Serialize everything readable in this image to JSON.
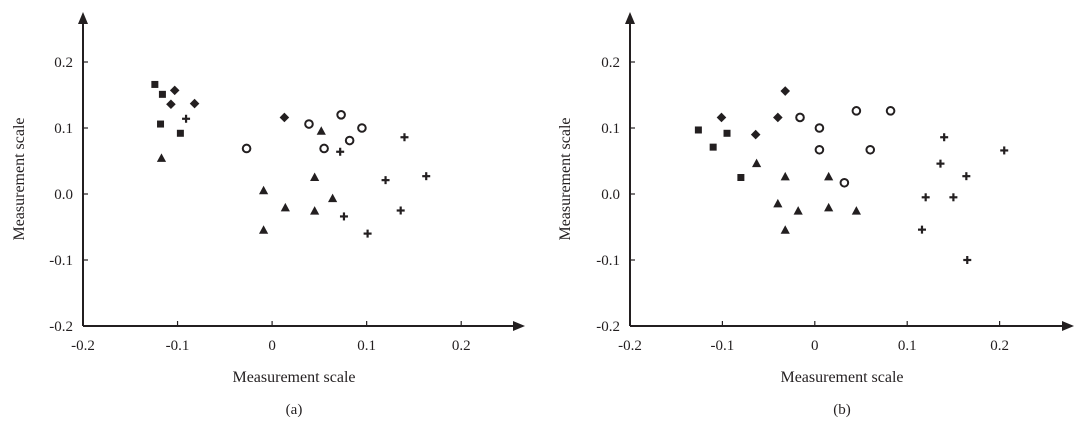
{
  "chart_data": [
    {
      "type": "scatter",
      "panel_label": "(a)",
      "xlabel": "Measurement scale",
      "ylabel": "Measurement scale",
      "xlim": [
        -0.2,
        0.25
      ],
      "ylim": [
        -0.2,
        0.28
      ],
      "x_ticks": [
        -0.2,
        -0.1,
        0.0,
        0.1,
        0.2
      ],
      "x_tick_labels": [
        "-0.2",
        "-0.1",
        "0",
        "0.1",
        "0.2"
      ],
      "y_ticks": [
        -0.2,
        -0.1,
        0.0,
        0.1,
        0.2
      ],
      "y_tick_labels": [
        "-0.2",
        "-0.1",
        "0.0",
        "0.1",
        "0.2"
      ],
      "grid": false,
      "color": "#231f20",
      "series": [
        {
          "marker": "square",
          "points": [
            [
              -0.124,
              0.166
            ],
            [
              -0.116,
              0.151
            ],
            [
              -0.118,
              0.106
            ],
            [
              -0.097,
              0.092
            ]
          ]
        },
        {
          "marker": "diamond",
          "points": [
            [
              -0.103,
              0.157
            ],
            [
              -0.107,
              0.136
            ],
            [
              -0.082,
              0.137
            ],
            [
              0.013,
              0.116
            ]
          ]
        },
        {
          "marker": "plus",
          "points": [
            [
              -0.091,
              0.114
            ],
            [
              0.072,
              0.064
            ],
            [
              0.14,
              0.086
            ],
            [
              0.12,
              0.021
            ],
            [
              0.163,
              0.027
            ],
            [
              0.076,
              -0.034
            ],
            [
              0.136,
              -0.025
            ],
            [
              0.101,
              -0.06
            ]
          ]
        },
        {
          "marker": "triangle",
          "points": [
            [
              -0.117,
              0.054
            ],
            [
              -0.009,
              0.005
            ],
            [
              0.014,
              -0.021
            ],
            [
              -0.009,
              -0.055
            ],
            [
              0.045,
              0.025
            ],
            [
              0.045,
              -0.026
            ],
            [
              0.064,
              -0.007
            ],
            [
              0.052,
              0.095
            ]
          ]
        },
        {
          "marker": "circle",
          "points": [
            [
              -0.027,
              0.069
            ],
            [
              0.039,
              0.106
            ],
            [
              0.073,
              0.12
            ],
            [
              0.055,
              0.069
            ],
            [
              0.082,
              0.081
            ],
            [
              0.095,
              0.1
            ]
          ]
        }
      ]
    },
    {
      "type": "scatter",
      "panel_label": "(b)",
      "xlabel": "Measurement scale",
      "ylabel": "Measurement scale",
      "xlim": [
        -0.2,
        0.27
      ],
      "ylim": [
        -0.2,
        0.28
      ],
      "x_ticks": [
        -0.2,
        -0.1,
        0.0,
        0.1,
        0.2
      ],
      "x_tick_labels": [
        "-0.2",
        "-0.1",
        "0",
        "0.1",
        "0.2"
      ],
      "y_ticks": [
        -0.2,
        -0.1,
        0.0,
        0.1,
        0.2
      ],
      "y_tick_labels": [
        "-0.2",
        "-0.1",
        "0.0",
        "0.1",
        "0.2"
      ],
      "grid": false,
      "color": "#231f20",
      "series": [
        {
          "marker": "square",
          "points": [
            [
              -0.126,
              0.097
            ],
            [
              -0.11,
              0.071
            ],
            [
              -0.095,
              0.092
            ],
            [
              -0.08,
              0.025
            ]
          ]
        },
        {
          "marker": "diamond",
          "points": [
            [
              -0.101,
              0.116
            ],
            [
              -0.064,
              0.09
            ],
            [
              -0.04,
              0.116
            ],
            [
              -0.032,
              0.156
            ]
          ]
        },
        {
          "marker": "plus",
          "points": [
            [
              0.14,
              0.086
            ],
            [
              0.205,
              0.066
            ],
            [
              0.136,
              0.046
            ],
            [
              0.164,
              0.027
            ],
            [
              0.12,
              -0.005
            ],
            [
              0.15,
              -0.005
            ],
            [
              0.116,
              -0.054
            ],
            [
              0.165,
              -0.1
            ]
          ]
        },
        {
          "marker": "triangle",
          "points": [
            [
              -0.063,
              0.046
            ],
            [
              -0.032,
              0.026
            ],
            [
              -0.04,
              -0.015
            ],
            [
              -0.018,
              -0.026
            ],
            [
              0.015,
              0.026
            ],
            [
              0.015,
              -0.021
            ],
            [
              0.045,
              -0.026
            ],
            [
              -0.032,
              -0.055
            ]
          ]
        },
        {
          "marker": "circle",
          "points": [
            [
              -0.016,
              0.116
            ],
            [
              0.005,
              0.1
            ],
            [
              0.045,
              0.126
            ],
            [
              0.082,
              0.126
            ],
            [
              0.005,
              0.067
            ],
            [
              0.06,
              0.067
            ],
            [
              0.032,
              0.017
            ]
          ]
        }
      ]
    }
  ]
}
